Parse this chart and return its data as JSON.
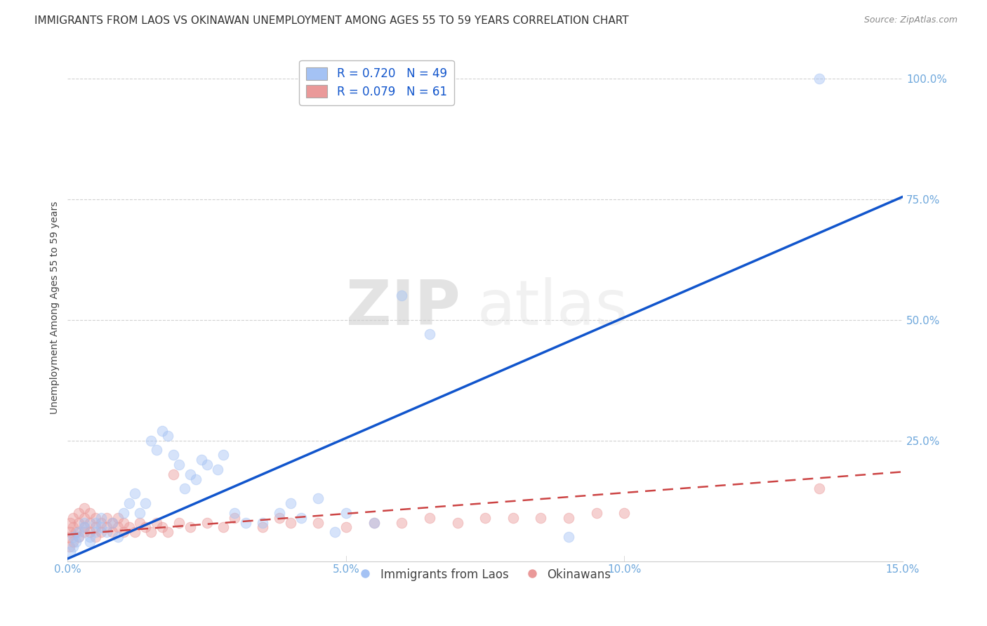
{
  "title": "IMMIGRANTS FROM LAOS VS OKINAWAN UNEMPLOYMENT AMONG AGES 55 TO 59 YEARS CORRELATION CHART",
  "source": "Source: ZipAtlas.com",
  "ylabel": "Unemployment Among Ages 55 to 59 years",
  "xmin": 0.0,
  "xmax": 0.15,
  "ymin": 0.0,
  "ymax": 1.05,
  "xtick_labels": [
    "0.0%",
    "5.0%",
    "10.0%",
    "15.0%"
  ],
  "xtick_vals": [
    0.0,
    0.05,
    0.1,
    0.15
  ],
  "ytick_labels": [
    "25.0%",
    "50.0%",
    "75.0%",
    "100.0%"
  ],
  "ytick_vals": [
    0.25,
    0.5,
    0.75,
    1.0
  ],
  "blue_R": 0.72,
  "blue_N": 49,
  "pink_R": 0.079,
  "pink_N": 61,
  "blue_color": "#a4c2f4",
  "pink_color": "#ea9999",
  "blue_line_color": "#1155cc",
  "pink_line_color": "#cc4444",
  "tick_color": "#6fa8dc",
  "background_color": "#ffffff",
  "grid_color": "#cccccc",
  "watermark_zip": "ZIP",
  "watermark_atlas": "atlas",
  "legend_label_blue": "Immigrants from Laos",
  "legend_label_pink": "Okinawans",
  "blue_scatter_x": [
    0.0005,
    0.001,
    0.001,
    0.0015,
    0.002,
    0.002,
    0.003,
    0.003,
    0.004,
    0.004,
    0.005,
    0.005,
    0.006,
    0.006,
    0.007,
    0.008,
    0.009,
    0.01,
    0.011,
    0.012,
    0.013,
    0.014,
    0.015,
    0.016,
    0.017,
    0.018,
    0.019,
    0.02,
    0.021,
    0.022,
    0.023,
    0.024,
    0.025,
    0.027,
    0.028,
    0.03,
    0.032,
    0.035,
    0.038,
    0.04,
    0.042,
    0.045,
    0.048,
    0.05,
    0.055,
    0.06,
    0.065,
    0.09,
    0.135
  ],
  "blue_scatter_y": [
    0.02,
    0.03,
    0.05,
    0.04,
    0.05,
    0.06,
    0.07,
    0.08,
    0.04,
    0.05,
    0.06,
    0.08,
    0.07,
    0.09,
    0.06,
    0.08,
    0.05,
    0.1,
    0.12,
    0.14,
    0.1,
    0.12,
    0.25,
    0.23,
    0.27,
    0.26,
    0.22,
    0.2,
    0.15,
    0.18,
    0.17,
    0.21,
    0.2,
    0.19,
    0.22,
    0.1,
    0.08,
    0.08,
    0.1,
    0.12,
    0.09,
    0.13,
    0.06,
    0.1,
    0.08,
    0.55,
    0.47,
    0.05,
    1.0
  ],
  "pink_scatter_x": [
    0.0002,
    0.0003,
    0.0005,
    0.0005,
    0.001,
    0.001,
    0.001,
    0.0015,
    0.002,
    0.002,
    0.002,
    0.003,
    0.003,
    0.003,
    0.003,
    0.004,
    0.004,
    0.004,
    0.005,
    0.005,
    0.005,
    0.006,
    0.006,
    0.007,
    0.007,
    0.008,
    0.008,
    0.009,
    0.009,
    0.01,
    0.01,
    0.011,
    0.012,
    0.013,
    0.014,
    0.015,
    0.016,
    0.017,
    0.018,
    0.019,
    0.02,
    0.022,
    0.025,
    0.028,
    0.03,
    0.035,
    0.038,
    0.04,
    0.045,
    0.05,
    0.055,
    0.06,
    0.065,
    0.07,
    0.075,
    0.08,
    0.085,
    0.09,
    0.095,
    0.1,
    0.135
  ],
  "pink_scatter_y": [
    0.05,
    0.03,
    0.06,
    0.08,
    0.04,
    0.07,
    0.09,
    0.06,
    0.05,
    0.08,
    0.1,
    0.06,
    0.07,
    0.09,
    0.11,
    0.06,
    0.08,
    0.1,
    0.05,
    0.07,
    0.09,
    0.06,
    0.08,
    0.07,
    0.09,
    0.06,
    0.08,
    0.07,
    0.09,
    0.06,
    0.08,
    0.07,
    0.06,
    0.08,
    0.07,
    0.06,
    0.08,
    0.07,
    0.06,
    0.18,
    0.08,
    0.07,
    0.08,
    0.07,
    0.09,
    0.07,
    0.09,
    0.08,
    0.08,
    0.07,
    0.08,
    0.08,
    0.09,
    0.08,
    0.09,
    0.09,
    0.09,
    0.09,
    0.1,
    0.1,
    0.15
  ],
  "blue_line_x": [
    0.0,
    0.15
  ],
  "blue_line_y": [
    0.005,
    0.755
  ],
  "pink_line_x": [
    0.0,
    0.15
  ],
  "pink_line_y": [
    0.055,
    0.185
  ],
  "title_fontsize": 11,
  "axis_label_fontsize": 10,
  "tick_fontsize": 11,
  "scatter_size": 110,
  "scatter_alpha": 0.45,
  "scatter_lw": 0.8
}
